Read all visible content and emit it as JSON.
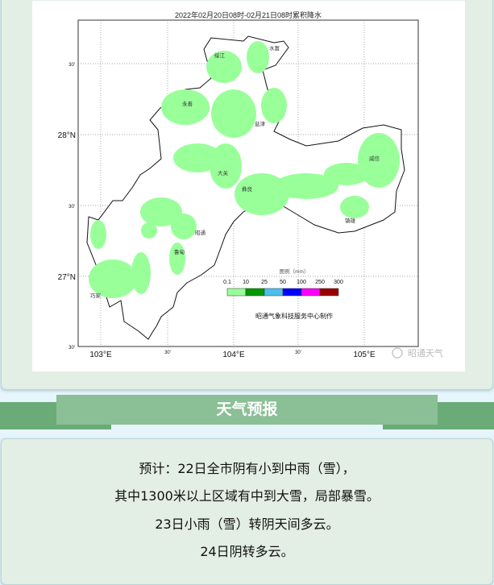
{
  "map": {
    "title": "2022年02月20日08时-02月21日08时累积降水",
    "lon_labels": [
      "103°E",
      "30'",
      "104°E",
      "30'",
      "105°E"
    ],
    "lat_labels": [
      "30'",
      "28°N",
      "30'",
      "27°N",
      "30'"
    ],
    "counties": [
      "绥江",
      "水富",
      "永善",
      "盐津",
      "大关",
      "彝良",
      "威信",
      "镇雄",
      "昭通",
      "鲁甸",
      "巧家"
    ],
    "legend": {
      "title": "图例（mm）",
      "thresholds": [
        "0.1",
        "10",
        "25",
        "50",
        "100",
        "250",
        "300"
      ],
      "colors": [
        "#99ff99",
        "#009900",
        "#4dbfee",
        "#0000ff",
        "#ff00ff",
        "#990000"
      ]
    },
    "credit": "昭通气象科技服务中心制作",
    "watermark": "昭通天气",
    "rain_color": "#99ff99"
  },
  "section": {
    "title": "天气预报"
  },
  "forecast": {
    "lines": [
      "预计：22日全市阴有小到中雨（雪），",
      "其中1300米以上区域有中到大雪，局部暴雪。",
      "23日小雨（雪）转阴天间多云。",
      "24日阴转多云。"
    ]
  }
}
